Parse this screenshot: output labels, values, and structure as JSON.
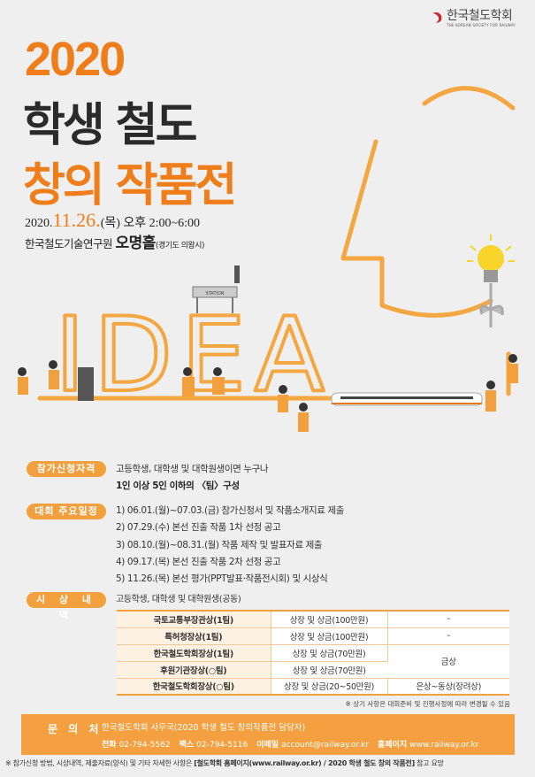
{
  "logo": {
    "name_ko": "한국철도학회",
    "name_en": "THE KOREAN SOCIETY FOR RAILWAY"
  },
  "title": {
    "year": "2020",
    "line1": "학생 철도",
    "line2": "창의 작품전"
  },
  "event": {
    "date_prefix": "2020.",
    "date_main": "11.26.",
    "date_suffix": "(목) 오후 2:00~6:00",
    "venue_prefix": "한국철도기술연구원 ",
    "venue_hall": "오명홀",
    "venue_location": "(경기도 의왕시)"
  },
  "illustration": {
    "letters": "IDEA",
    "station_sign": "STATION"
  },
  "eligibility": {
    "label": "참가신청자격",
    "line1": "고등학생, 대학생 및 대학원생이면 누구나",
    "line2": "1인 이상 5인 이하의 〈팀〉구성"
  },
  "schedule": {
    "label": "대회 주요일정",
    "items": [
      "1) 06.01.(월)~07.03.(금) 참가신청서 및 작품소개지료 제출",
      "2) 07.29.(수) 본선 진출 작품 1차 선정 공고",
      "3) 08.10.(월)~08.31.(월) 작품 제작 및 발표자료 제출",
      "4) 09.17.(목) 본선 진출 작품 2차 선정 공고",
      "5) 11.26.(목) 본선 평가(PPT발표·작품전시회) 및 시상식"
    ]
  },
  "awards": {
    "label": "시 상 내 역",
    "subtitle": "고등학생, 대학생 및 대학원생(공동)",
    "rows": [
      {
        "name": "국토교통부장관상(1팀)",
        "prize": "상장 및 상금(100만원)",
        "grade": "-"
      },
      {
        "name": "특허청장상(1팀)",
        "prize": "상장 및 상금(100만원)",
        "grade": "-"
      },
      {
        "name": "한국철도학회장상(1팀)",
        "prize": "상장 및 상금(70만원)",
        "grade": "금상"
      },
      {
        "name": "후원기관장상(○팀)",
        "prize": "상장 및 상금(70만원)"
      },
      {
        "name": "한국철도학회장상(○팀)",
        "prize": "상장 및 상금(20~50만원)",
        "grade": "은상~동상(장려상)"
      }
    ],
    "note": "※ 상기 사항은 대회준비 및 진행사정에 따라 변경될 수 있음"
  },
  "contact": {
    "label": "문 의 처",
    "org": "한국철도학회 사무국(2020 학생 철도 창의작품전 담당자)",
    "phone_label": "전화",
    "phone": "02-794-5562",
    "fax_label": "팩스",
    "fax": "02-794-5116",
    "email_label": "이메일",
    "email": "account@railway.or.kr",
    "web_label": "홈페이지",
    "web": "www.railway.or.kr"
  },
  "footer": {
    "text": "※ 참가신청 방법, 시상내역, 제출자료(양식) 및 기타 자세한 사항은 ",
    "link": "[철도학회 홈페이지(www.railway.or.kr) / 2020 학생 철도 창의 작품전]",
    "suffix": " 참고 요망"
  },
  "colors": {
    "accent": "#ee7d1a",
    "badge": "#f2a03e",
    "contact_bg": "#f4a040"
  }
}
